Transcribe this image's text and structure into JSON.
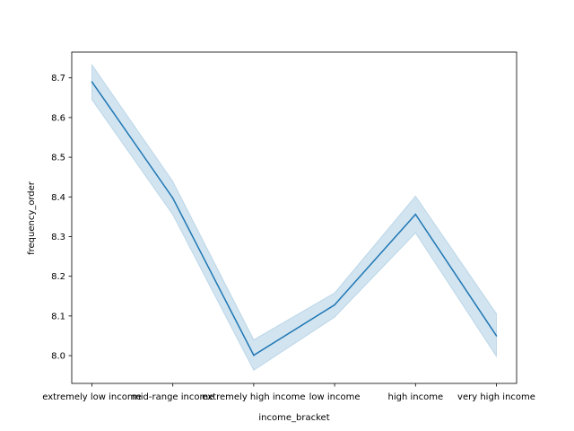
{
  "chart_data": {
    "type": "line",
    "xlabel": "income_bracket",
    "ylabel": "frequency_order",
    "categories": [
      "extremely low income",
      "mid-range income",
      "extremely high income",
      "low income",
      "high income",
      "very high income"
    ],
    "series": [
      {
        "values": [
          8.69,
          8.397,
          8.001,
          8.128,
          8.356,
          8.05
        ],
        "ci_lower": [
          8.645,
          8.355,
          7.963,
          8.097,
          8.309,
          7.998
        ],
        "ci_upper": [
          8.733,
          8.439,
          8.04,
          8.158,
          8.402,
          8.106
        ]
      }
    ],
    "yticks": [
      "8.0",
      "8.1",
      "8.2",
      "8.3",
      "8.4",
      "8.5",
      "8.6",
      "8.7"
    ],
    "ylim": [
      7.93,
      8.765
    ],
    "grid": false,
    "colors": {
      "line": "#1f77b4",
      "band": "#1f77b4"
    }
  }
}
